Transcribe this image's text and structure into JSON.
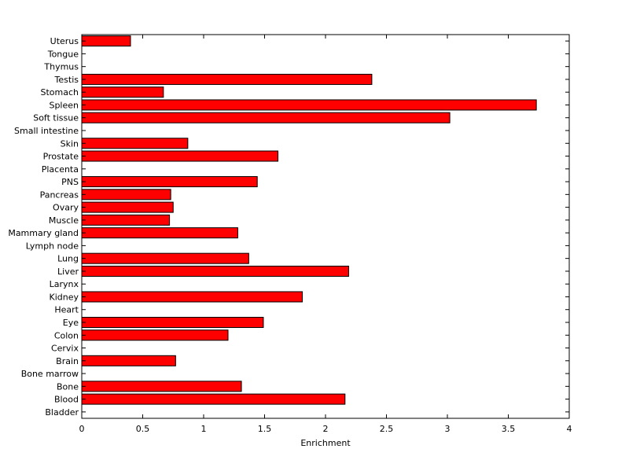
{
  "chart_data": {
    "type": "bar",
    "orientation": "horizontal",
    "title": "",
    "xlabel": "Enrichment",
    "ylabel": "",
    "xlim": [
      0,
      4
    ],
    "xticks": [
      0,
      0.5,
      1,
      1.5,
      2,
      2.5,
      3,
      3.5,
      4
    ],
    "xtick_labels": [
      "0",
      "0.5",
      "1",
      "1.5",
      "2",
      "2.5",
      "3",
      "3.5",
      "4"
    ],
    "grid": false,
    "categories": [
      "Uterus",
      "Tongue",
      "Thymus",
      "Testis",
      "Stomach",
      "Spleen",
      "Soft tissue",
      "Small intestine",
      "Skin",
      "Prostate",
      "Placenta",
      "PNS",
      "Pancreas",
      "Ovary",
      "Muscle",
      "Mammary gland",
      "Lymph node",
      "Lung",
      "Liver",
      "Larynx",
      "Kidney",
      "Heart",
      "Eye",
      "Colon",
      "Cervix",
      "Brain",
      "Bone marrow",
      "Bone",
      "Blood",
      "Bladder"
    ],
    "values": [
      0.4,
      0,
      0,
      2.38,
      0.67,
      3.73,
      3.02,
      0,
      0.87,
      1.61,
      0,
      1.44,
      0.73,
      0.75,
      0.72,
      1.28,
      0,
      1.37,
      2.19,
      0,
      1.81,
      0,
      1.49,
      1.2,
      0,
      0.77,
      0,
      1.31,
      2.16,
      0
    ],
    "colors": {
      "bar_fill": "#ff0000",
      "bar_stroke": "#000000",
      "axis": "#000000",
      "background": "#ffffff"
    }
  }
}
